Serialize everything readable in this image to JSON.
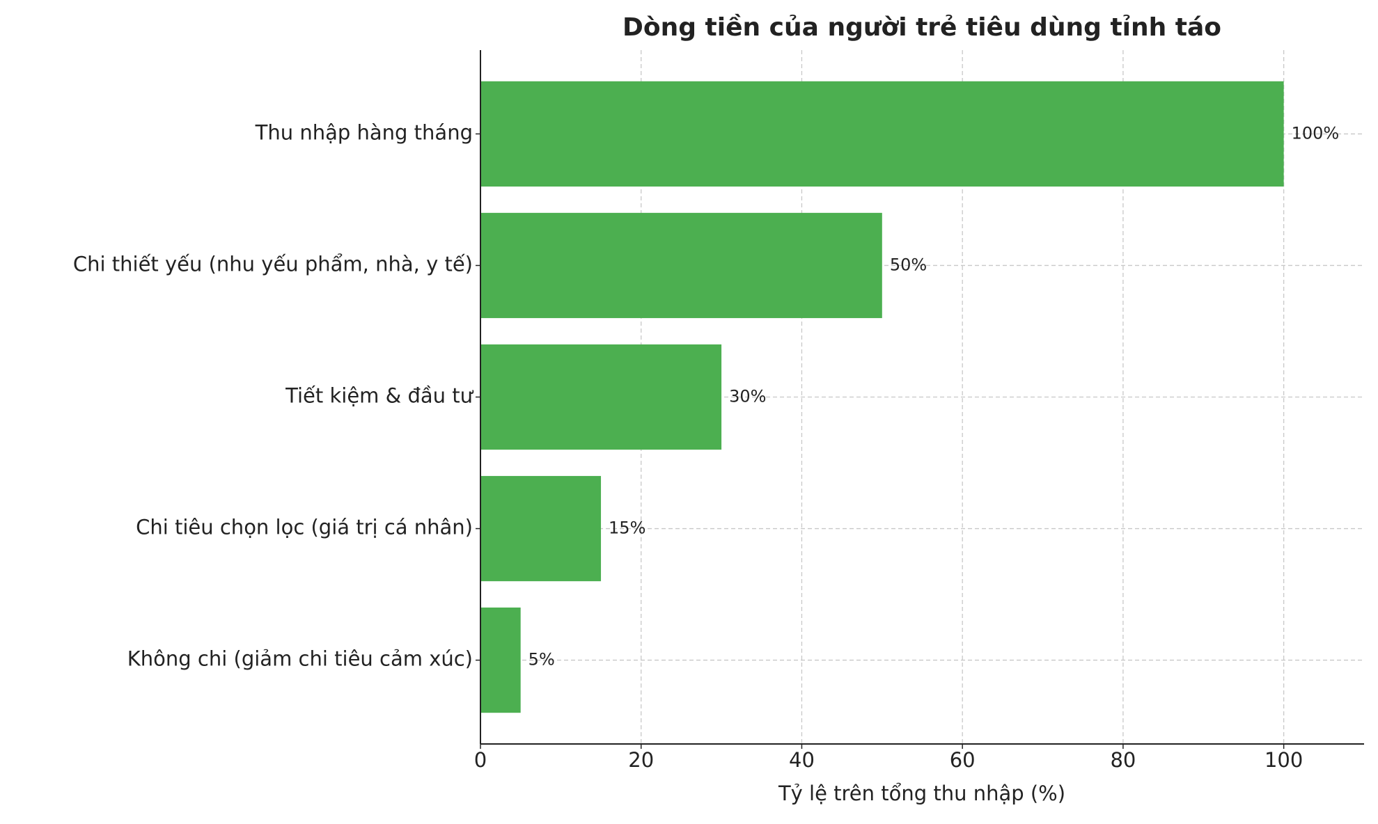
{
  "chart_data": {
    "type": "barh",
    "title": "Dòng tiền của người trẻ tiêu dùng tỉnh táo",
    "x_label": "Tỷ lệ trên tổng thu nhập (%)",
    "categories": [
      "Thu nhập hàng tháng",
      "Chi thiết yếu (nhu yếu phẩm, nhà, y tế)",
      "Tiết kiệm & đầu tư",
      "Chi tiêu chọn lọc (giá trị cá nhân)",
      "Không chi (giảm chi tiêu cảm xúc)"
    ],
    "values": [
      100,
      50,
      30,
      15,
      5
    ],
    "value_labels": [
      "100%",
      "50%",
      "30%",
      "15%",
      "5%"
    ],
    "color": "#4caf50",
    "xlim": [
      0,
      110
    ],
    "xticks": [
      0,
      20,
      40,
      60,
      80,
      100
    ],
    "grid": true
  }
}
